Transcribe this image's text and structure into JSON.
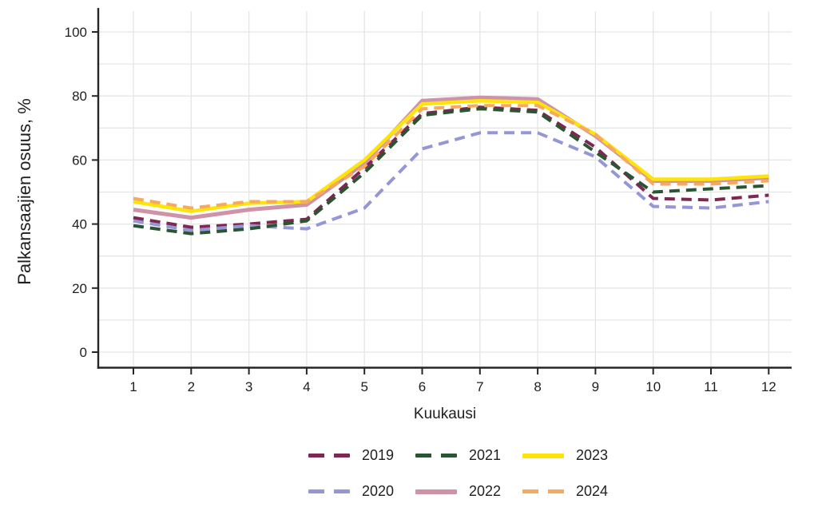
{
  "chart_data": {
    "type": "line",
    "title": "",
    "xlabel": "Kuukausi",
    "ylabel": "Palkansaajien osuus, %",
    "x": [
      1,
      2,
      3,
      4,
      5,
      6,
      7,
      8,
      9,
      10,
      11,
      12
    ],
    "xtick_labels": [
      "1",
      "2",
      "3",
      "4",
      "5",
      "6",
      "7",
      "8",
      "9",
      "10",
      "11",
      "12"
    ],
    "ylim": [
      0,
      100
    ],
    "ytick_labels": [
      "0",
      "20",
      "40",
      "60",
      "80",
      "100"
    ],
    "yticks": [
      0,
      20,
      40,
      60,
      80,
      100
    ],
    "gridlines_y": [
      0,
      10,
      20,
      30,
      40,
      50,
      60,
      70,
      80,
      90,
      100
    ],
    "grid": "on",
    "legend_position": "bottom",
    "legend_rows": [
      [
        "2019",
        "2021",
        "2023"
      ],
      [
        "2020",
        "2022",
        "2024"
      ]
    ],
    "colors": {
      "2019": "#7E2750",
      "2020": "#9596D6",
      "2021": "#295532",
      "2022": "#CE93A9",
      "2023": "#FFE40B",
      "2024": "#F7A95E",
      "axis": "#262626",
      "gridline": "#e5e5e5"
    },
    "series": [
      {
        "name": "2019",
        "style": "dashed",
        "color": "#7E2750",
        "width": 4,
        "values": [
          42,
          39,
          40,
          41.5,
          57.5,
          74.5,
          76.5,
          75.5,
          64,
          48,
          47.5,
          49
        ]
      },
      {
        "name": "2020",
        "style": "dashed",
        "color": "#9596D6",
        "width": 4,
        "values": [
          41,
          38,
          39.5,
          38.5,
          45,
          63.5,
          68.5,
          68.5,
          61,
          45.5,
          45,
          47
        ]
      },
      {
        "name": "2021",
        "style": "dashed",
        "color": "#295532",
        "width": 4,
        "values": [
          39.5,
          37,
          38.5,
          41,
          56,
          74,
          76,
          75,
          62.5,
          50,
          51,
          52
        ]
      },
      {
        "name": "2022",
        "style": "solid",
        "color": "#CE93A9",
        "width": 5,
        "values": [
          44.5,
          42,
          44.5,
          46,
          59,
          78.5,
          79.5,
          79,
          67.5,
          53.5,
          53.5,
          54.5
        ]
      },
      {
        "name": "2023",
        "style": "solid",
        "color": "#FFE40B",
        "width": 4.5,
        "values": [
          47,
          44,
          46.5,
          47,
          60,
          77.5,
          78.5,
          78,
          68,
          54,
          54,
          55
        ]
      },
      {
        "name": "2024",
        "style": "dashed",
        "color": "#F7A95E",
        "width": 4,
        "values": [
          48,
          45,
          47,
          47,
          58,
          76,
          77,
          77,
          68,
          52.5,
          52.5,
          53.5
        ]
      }
    ]
  }
}
